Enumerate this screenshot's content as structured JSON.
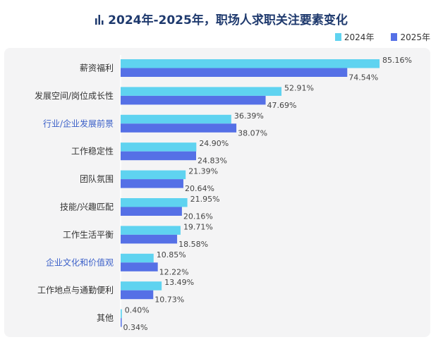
{
  "chart_data": {
    "type": "bar",
    "orientation": "horizontal",
    "title": "2024年-2025年，职场人求职关注要素变化",
    "categories": [
      "薪资福利",
      "发展空间/岗位成长性",
      "行业/企业发展前景",
      "工作稳定性",
      "团队氛围",
      "技能/兴趣匹配",
      "工作生活平衡",
      "企业文化和价值观",
      "工作地点与通勤便利",
      "其他"
    ],
    "highlighted_categories": [
      "行业/企业发展前景",
      "企业文化和价值观"
    ],
    "series": [
      {
        "name": "2024年",
        "color": "#5fd3f0",
        "values": [
          85.16,
          52.91,
          36.39,
          24.9,
          21.39,
          21.95,
          19.71,
          10.85,
          13.49,
          0.4
        ],
        "labels": [
          "85.16%",
          "52.91%",
          "36.39%",
          "24.90%",
          "21.39%",
          "21.95%",
          "19.71%",
          "10.85%",
          "13.49%",
          "0.40%"
        ]
      },
      {
        "name": "2025年",
        "color": "#5570e6",
        "values": [
          74.54,
          47.69,
          38.07,
          24.83,
          20.64,
          20.16,
          18.58,
          12.22,
          10.73,
          0.34
        ],
        "labels": [
          "74.54%",
          "47.69%",
          "38.07%",
          "24.83%",
          "20.64%",
          "20.16%",
          "18.58%",
          "12.22%",
          "10.73%",
          "0.34%"
        ]
      }
    ],
    "unit": "%",
    "xlim": [
      0,
      100
    ],
    "grid": false,
    "legend": "top-right"
  },
  "colors": {
    "title": "#1f3a6e",
    "label": "#333333",
    "highlight": "#3a5fc8"
  },
  "title_icon": "bar-chart-icon"
}
